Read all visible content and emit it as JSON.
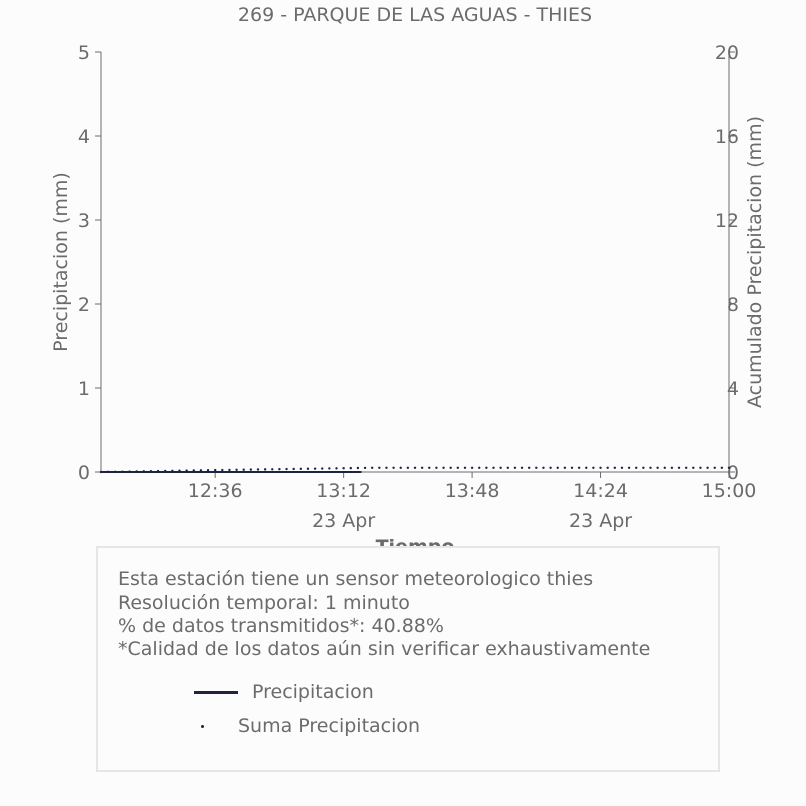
{
  "chart_data": {
    "type": "line",
    "title": "269 - PARQUE DE LAS AGUAS - THIES",
    "xlabel": "Tiempo",
    "ylabel": "Precipitacion (mm)",
    "y2label": "Acumulado Precipitacion (mm)",
    "x_ticks": [
      "12:36",
      "13:12",
      "13:48",
      "14:24",
      "15:00"
    ],
    "x_date_labels": [
      {
        "under": "13:12",
        "label": "23 Apr"
      },
      {
        "under": "14:24",
        "label": "23 Apr"
      }
    ],
    "ylim": [
      0,
      5
    ],
    "y_ticks": [
      0,
      1,
      2,
      3,
      4,
      5
    ],
    "y2lim": [
      0,
      20
    ],
    "y2_ticks": [
      0,
      4,
      8,
      12,
      16,
      20
    ],
    "xlim": [
      "12:04",
      "15:00"
    ],
    "grid": false,
    "series": [
      {
        "name": "Precipitacion",
        "style": "line",
        "axis": "left",
        "color": "#1f2240",
        "x": [
          "12:04",
          "13:17"
        ],
        "values": [
          0,
          0
        ]
      },
      {
        "name": "Suma Precipicacion",
        "style": "dots",
        "axis": "right",
        "color": "#1f2240",
        "x": [
          "12:04",
          "12:40",
          "13:00",
          "13:20",
          "15:00"
        ],
        "values": [
          0.0,
          0.1,
          0.15,
          0.2,
          0.2
        ]
      }
    ]
  },
  "info": {
    "line1": "Esta estación tiene un sensor meteorologico thies",
    "line2": "Resolución temporal: 1 minuto",
    "line3": "% de datos transmitidos*: 40.88%",
    "line4": "*Calidad de los datos aún sin verificar exhaustivamente"
  },
  "legend": {
    "item1": "Precipitacion",
    "item2": "Suma Precipitacion"
  }
}
